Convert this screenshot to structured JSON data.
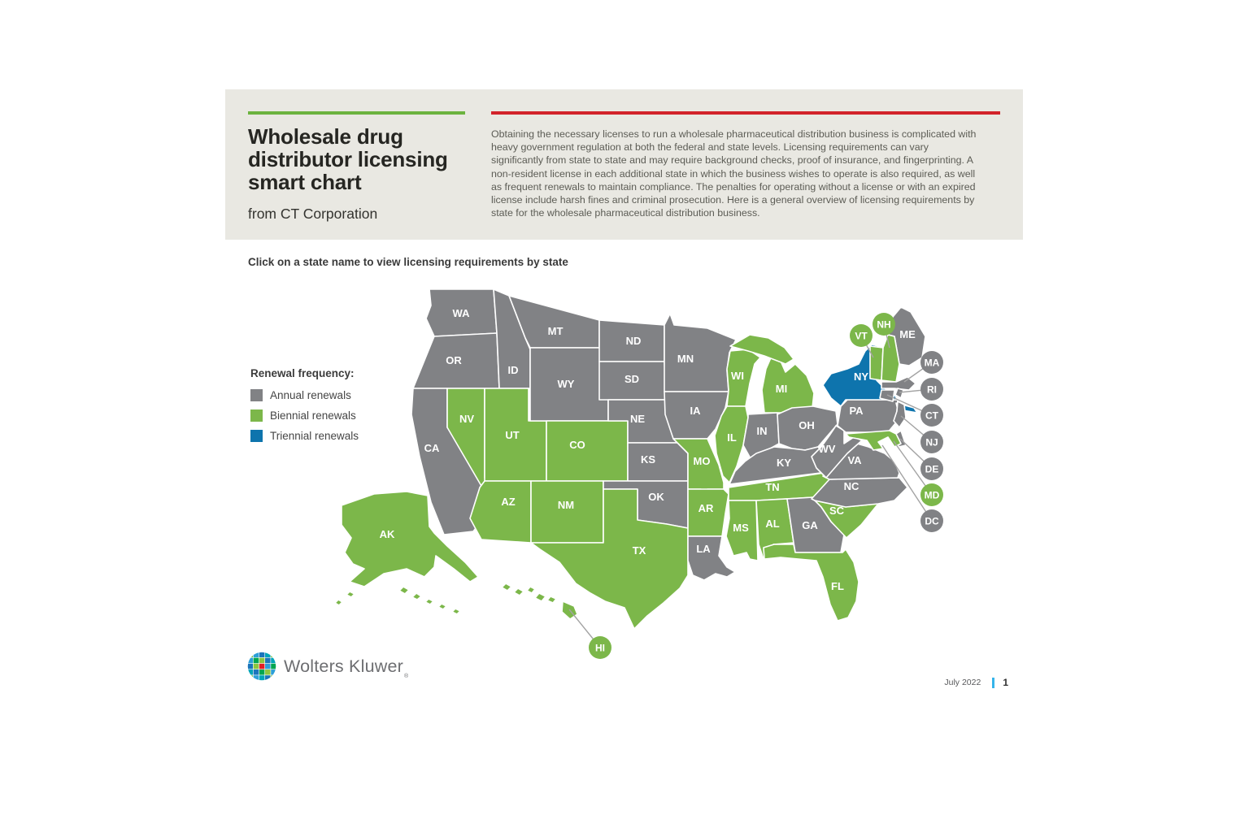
{
  "header": {
    "title": "Wholesale drug distributor licensing smart chart",
    "subtitle": "from CT Corporation",
    "intro": "Obtaining the necessary licenses to run a wholesale pharmaceutical distribution business is complicated with heavy government regulation at both the federal and state levels. Licensing requirements can vary significantly from state to state and may require background checks, proof of insurance, and fingerprinting. A non-resident license in each additional state in which the business wishes to operate is also required, as well as frequent renewals to maintain compliance. The penalties for operating without a license or with an expired license include harsh fines and criminal prosecution. Here is a general overview of licensing requirements by state for the wholesale pharmaceutical distribution business."
  },
  "instruction": "Click on a state name to view licensing requirements by state",
  "legend": {
    "title": "Renewal frequency:",
    "items": [
      {
        "key": "annual",
        "label": "Annual renewals"
      },
      {
        "key": "biennial",
        "label": "Biennial renewals"
      },
      {
        "key": "triennial",
        "label": "Triennial renewals"
      }
    ]
  },
  "colors": {
    "annual": "#818285",
    "biennial": "#7cb74a",
    "triennial": "#0e74ad",
    "rule_green": "#6cb33f",
    "rule_red": "#d2232a",
    "callout_line": "#a3a3a3",
    "page_separator": "#35b4ea"
  },
  "map": {
    "states": [
      {
        "id": "WA",
        "label": "WA",
        "renewal": "annual"
      },
      {
        "id": "OR",
        "label": "OR",
        "renewal": "annual"
      },
      {
        "id": "CA",
        "label": "CA",
        "renewal": "annual"
      },
      {
        "id": "NV",
        "label": "NV",
        "renewal": "biennial"
      },
      {
        "id": "ID",
        "label": "ID",
        "renewal": "annual"
      },
      {
        "id": "UT",
        "label": "UT",
        "renewal": "biennial"
      },
      {
        "id": "AZ",
        "label": "AZ",
        "renewal": "biennial"
      },
      {
        "id": "MT",
        "label": "MT",
        "renewal": "annual"
      },
      {
        "id": "WY",
        "label": "WY",
        "renewal": "annual"
      },
      {
        "id": "CO",
        "label": "CO",
        "renewal": "biennial"
      },
      {
        "id": "NM",
        "label": "NM",
        "renewal": "biennial"
      },
      {
        "id": "ND",
        "label": "ND",
        "renewal": "annual"
      },
      {
        "id": "SD",
        "label": "SD",
        "renewal": "annual"
      },
      {
        "id": "NE",
        "label": "NE",
        "renewal": "annual"
      },
      {
        "id": "KS",
        "label": "KS",
        "renewal": "annual"
      },
      {
        "id": "OK",
        "label": "OK",
        "renewal": "annual"
      },
      {
        "id": "TX",
        "label": "TX",
        "renewal": "biennial"
      },
      {
        "id": "MN",
        "label": "MN",
        "renewal": "annual"
      },
      {
        "id": "IA",
        "label": "IA",
        "renewal": "annual"
      },
      {
        "id": "MO",
        "label": "MO",
        "renewal": "biennial"
      },
      {
        "id": "AR",
        "label": "AR",
        "renewal": "biennial"
      },
      {
        "id": "LA",
        "label": "LA",
        "renewal": "annual"
      },
      {
        "id": "WI",
        "label": "WI",
        "renewal": "biennial"
      },
      {
        "id": "IL",
        "label": "IL",
        "renewal": "biennial"
      },
      {
        "id": "MI",
        "label": "MI",
        "renewal": "biennial"
      },
      {
        "id": "IN",
        "label": "IN",
        "renewal": "annual"
      },
      {
        "id": "OH",
        "label": "OH",
        "renewal": "annual"
      },
      {
        "id": "KY",
        "label": "KY",
        "renewal": "annual"
      },
      {
        "id": "TN",
        "label": "TN",
        "renewal": "biennial"
      },
      {
        "id": "MS",
        "label": "MS",
        "renewal": "biennial"
      },
      {
        "id": "AL",
        "label": "AL",
        "renewal": "biennial"
      },
      {
        "id": "GA",
        "label": "GA",
        "renewal": "annual"
      },
      {
        "id": "SC",
        "label": "SC",
        "renewal": "biennial"
      },
      {
        "id": "NC",
        "label": "NC",
        "renewal": "annual"
      },
      {
        "id": "VA",
        "label": "VA",
        "renewal": "annual"
      },
      {
        "id": "WV",
        "label": "WV",
        "renewal": "annual"
      },
      {
        "id": "PA",
        "label": "PA",
        "renewal": "annual"
      },
      {
        "id": "NY",
        "label": "NY",
        "renewal": "triennial"
      },
      {
        "id": "ME",
        "label": "ME",
        "renewal": "annual"
      },
      {
        "id": "FL",
        "label": "FL",
        "renewal": "biennial"
      },
      {
        "id": "AK",
        "label": "AK",
        "renewal": "biennial"
      },
      {
        "id": "VT",
        "label": "",
        "renewal": "biennial"
      },
      {
        "id": "NH",
        "label": "",
        "renewal": "biennial"
      },
      {
        "id": "MA",
        "label": "",
        "renewal": "annual"
      },
      {
        "id": "RI",
        "label": "",
        "renewal": "annual"
      },
      {
        "id": "CT",
        "label": "",
        "renewal": "annual"
      },
      {
        "id": "NJ",
        "label": "",
        "renewal": "annual"
      },
      {
        "id": "DE",
        "label": "",
        "renewal": "annual"
      },
      {
        "id": "MD",
        "label": "",
        "renewal": "biennial"
      },
      {
        "id": "HI",
        "label": "",
        "renewal": "biennial"
      }
    ],
    "callouts": [
      {
        "id": "VT",
        "label": "VT",
        "renewal": "biennial"
      },
      {
        "id": "NH",
        "label": "NH",
        "renewal": "biennial"
      },
      {
        "id": "MA",
        "label": "MA",
        "renewal": "annual"
      },
      {
        "id": "RI",
        "label": "RI",
        "renewal": "annual"
      },
      {
        "id": "CT",
        "label": "CT",
        "renewal": "annual"
      },
      {
        "id": "NJ",
        "label": "NJ",
        "renewal": "annual"
      },
      {
        "id": "DE",
        "label": "DE",
        "renewal": "annual"
      },
      {
        "id": "MD",
        "label": "MD",
        "renewal": "biennial"
      },
      {
        "id": "DC",
        "label": "DC",
        "renewal": "annual"
      },
      {
        "id": "HI",
        "label": "HI",
        "renewal": "biennial"
      }
    ]
  },
  "footer": {
    "brand": "Wolters Kluwer",
    "reg_mark": "®",
    "date": "July 2022",
    "page": "1"
  }
}
